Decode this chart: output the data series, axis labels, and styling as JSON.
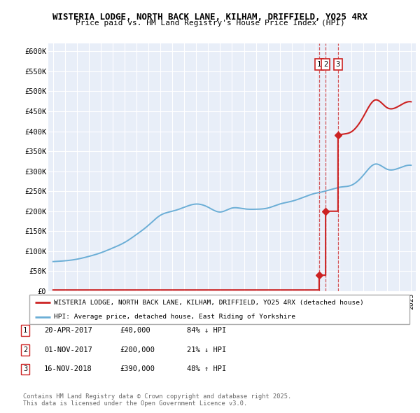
{
  "title_line1": "WISTERIA LODGE, NORTH BACK LANE, KILHAM, DRIFFIELD, YO25 4RX",
  "title_line2": "Price paid vs. HM Land Registry's House Price Index (HPI)",
  "ylim": [
    0,
    620000
  ],
  "yticks": [
    0,
    50000,
    100000,
    150000,
    200000,
    250000,
    300000,
    350000,
    400000,
    450000,
    500000,
    550000,
    600000
  ],
  "ytick_labels": [
    "£0",
    "£50K",
    "£100K",
    "£150K",
    "£200K",
    "£250K",
    "£300K",
    "£350K",
    "£400K",
    "£450K",
    "£500K",
    "£550K",
    "£600K"
  ],
  "xlim_start": 1994.6,
  "xlim_end": 2025.4,
  "hpi_color": "#6baed6",
  "price_color": "#cc2222",
  "transaction_dates": [
    2017.3,
    2017.84,
    2018.88
  ],
  "transaction_prices": [
    40000,
    200000,
    390000
  ],
  "transaction_labels": [
    "1",
    "2",
    "3"
  ],
  "legend_label_red": "WISTERIA LODGE, NORTH BACK LANE, KILHAM, DRIFFIELD, YO25 4RX (detached house)",
  "legend_label_blue": "HPI: Average price, detached house, East Riding of Yorkshire",
  "table_rows": [
    [
      "1",
      "20-APR-2017",
      "£40,000",
      "84% ↓ HPI"
    ],
    [
      "2",
      "01-NOV-2017",
      "£200,000",
      "21% ↓ HPI"
    ],
    [
      "3",
      "16-NOV-2018",
      "£390,000",
      "48% ↑ HPI"
    ]
  ],
  "footnote": "Contains HM Land Registry data © Crown copyright and database right 2025.\nThis data is licensed under the Open Government Licence v3.0.",
  "background_color": "#e8eef8"
}
